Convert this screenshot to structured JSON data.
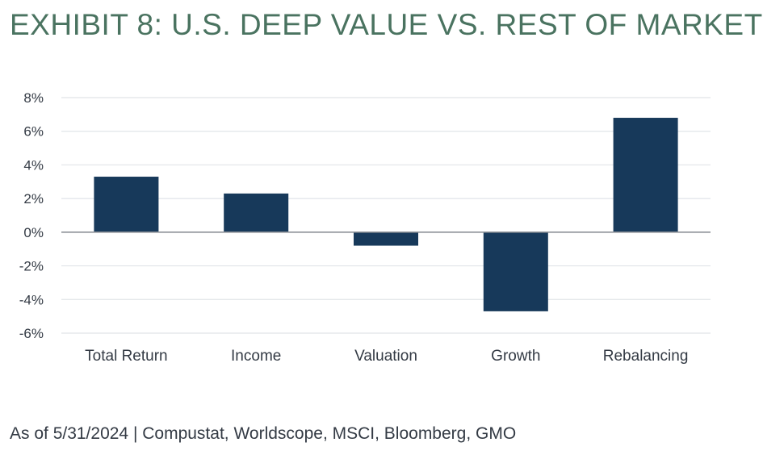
{
  "title": "EXHIBIT 8: U.S. DEEP VALUE VS. REST OF MARKET",
  "footer": "As of 5/31/2024 | Compustat, Worldscope, MSCI, Bloomberg, GMO",
  "colors": {
    "title": "#4a7360",
    "bar": "#17395a",
    "grid": "#e1e4e8",
    "zero_line": "#8c9196",
    "text": "#333a44"
  },
  "chart_data": {
    "type": "bar",
    "categories": [
      "Total Return",
      "Income",
      "Valuation",
      "Growth",
      "Rebalancing"
    ],
    "values": [
      3.3,
      2.3,
      -0.8,
      -4.7,
      6.8
    ],
    "y_ticks": [
      "8%",
      "6%",
      "4%",
      "2%",
      "0%",
      "-2%",
      "-4%",
      "-6%"
    ],
    "ylim": [
      -6,
      8
    ],
    "grid": true,
    "title": "",
    "xlabel": "",
    "ylabel": ""
  }
}
